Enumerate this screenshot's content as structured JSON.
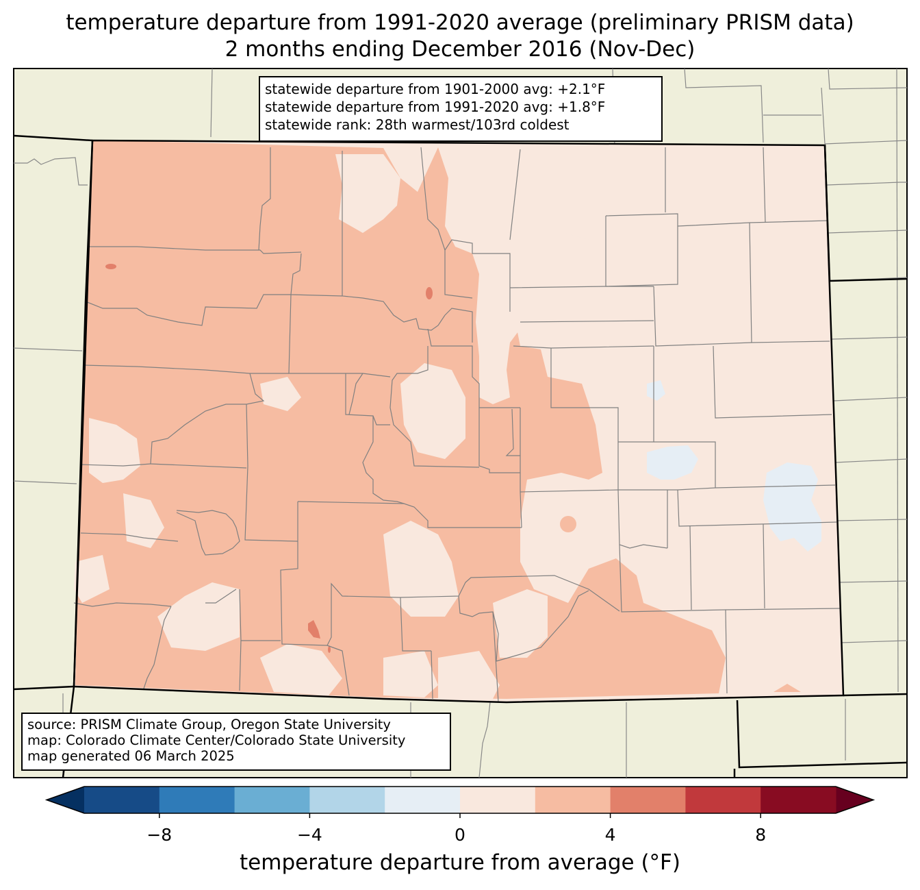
{
  "title": {
    "line1": "temperature departure from 1991-2020 average (preliminary PRISM data)",
    "line2": "2 months ending December 2016 (Nov-Dec)"
  },
  "stats": {
    "line1": "statewide departure from 1901-2000 avg: +2.1°F",
    "line2": "statewide departure from 1991-2020 avg: +1.8°F",
    "line3": "statewide rank: 28th warmest/103rd coldest"
  },
  "source": {
    "line1": "source: PRISM Climate Group, Oregon State University",
    "line2": "map: Colorado Climate Center/Colorado State University",
    "line3": "map generated 06 March 2025"
  },
  "colorbar": {
    "label": "temperature departure from average (°F)",
    "ticks": [
      {
        "value": -8,
        "label": "−8"
      },
      {
        "value": -4,
        "label": "−4"
      },
      {
        "value": 0,
        "label": "0"
      },
      {
        "value": 4,
        "label": "4"
      },
      {
        "value": 8,
        "label": "8"
      }
    ],
    "levels": [
      -10,
      -8,
      -6,
      -4,
      -2,
      0,
      2,
      4,
      6,
      8,
      10
    ],
    "colors": [
      "#164b87",
      "#2f7bb8",
      "#6aaed3",
      "#b2d5e8",
      "#e6eef5",
      "#f9e8de",
      "#f6bca2",
      "#e2806a",
      "#c1393c",
      "#880c22"
    ],
    "under_color": "#053061",
    "over_color": "#67001f"
  },
  "map_colors": {
    "background": "#efefdb",
    "departure_0_2": "#f9e8de",
    "departure_2_4": "#f6bca2",
    "departure_4_6": "#e2806a",
    "departure_neg2_0": "#e6eef5",
    "county_lines": "#808080",
    "state_lines": "#000000"
  }
}
